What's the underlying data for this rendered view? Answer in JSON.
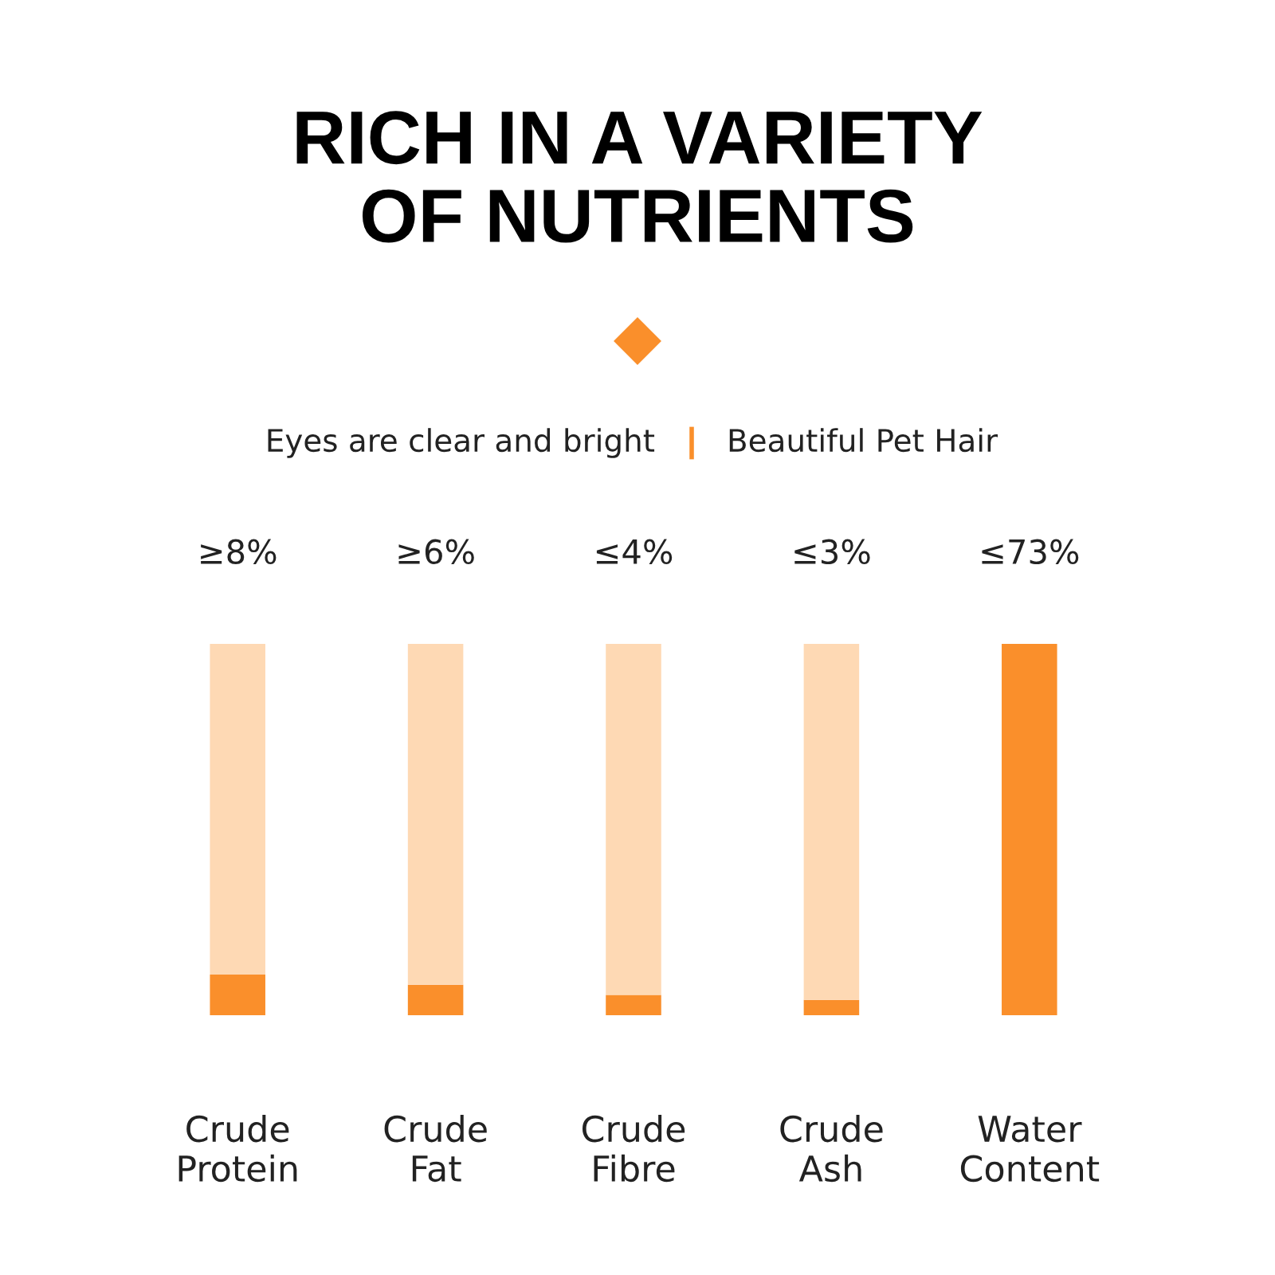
{
  "chart_data": {
    "type": "bar",
    "title": "RICH IN A VARIETY\nOF NUTRIENTS",
    "subtitle": "Eyes are clear and bright",
    "annotations": [
      "Beautiful Pet Hair"
    ],
    "categories": [
      "Crude\nProtein",
      "Crude\nFat",
      "Crude\nFibre",
      "Crude\nAsh",
      "Water\nContent"
    ],
    "stacked": true,
    "tick_labels": "x",
    "series": [
      {
        "color": "#fa8f2b",
        "values": [
          8,
          6,
          4,
          3,
          73
        ],
        "value_labels": [
          "≥8%",
          "≥6%",
          "≤4%",
          "≤3%",
          "≤73%"
        ]
      },
      {
        "color": "#fed9b4",
        "values": [
          65,
          67,
          69,
          70,
          null
        ]
      }
    ]
  }
}
